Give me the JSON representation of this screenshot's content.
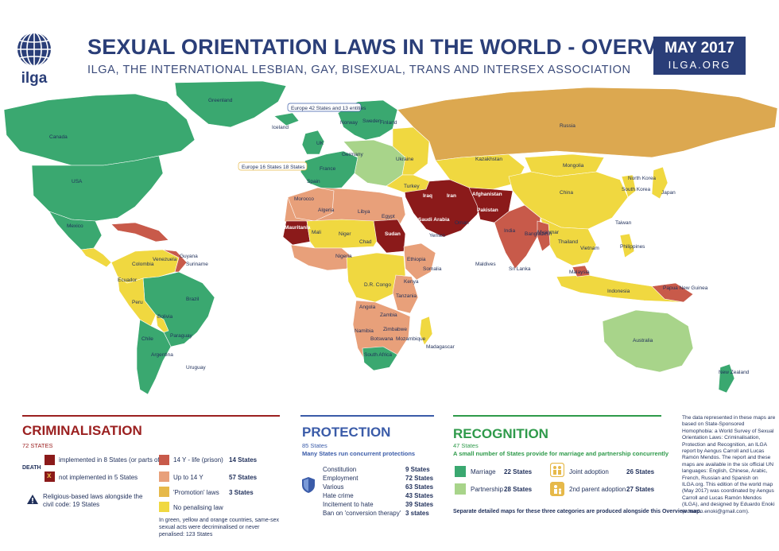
{
  "header": {
    "logo_text": "ilga",
    "title": "SEXUAL ORIENTATION LAWS IN THE WORLD - OVERVIEW",
    "subtitle": "ILGA, THE INTERNATIONAL LESBIAN, GAY, BISEXUAL, TRANS AND INTERSEX ASSOCIATION",
    "date": "MAY 2017",
    "site": "ILGA.ORG"
  },
  "colors": {
    "death": "#8b1a1a",
    "prison_14y_life": "#c85a4a",
    "up_to_14y": "#e8a07a",
    "promotion": "#e6b94a",
    "no_penalising": "#f0d840",
    "marriage": "#3aa870",
    "partnership": "#a8d48a",
    "protection_blue": "#3a5ba8",
    "recognition_green": "#2e9a4a",
    "criminalisation_red": "#9b2020",
    "ocean": "#ffffff",
    "russia": "#dca850"
  },
  "map_labels": {
    "greenland": "Greenland",
    "canada": "Canada",
    "usa": "USA",
    "mexico": "Mexico",
    "iceland": "Iceland",
    "russia": "Russia",
    "kazakhstan": "Kazakhstan",
    "mongolia": "Mongolia",
    "china": "China",
    "india": "India",
    "brazil": "Brazil",
    "argentina": "Argentina",
    "peru": "Peru",
    "bolivia": "Bolivia",
    "chile": "Chile",
    "colombia": "Colombia",
    "venezuela": "Venezuela",
    "ecuador": "Ecuador",
    "paraguay": "Paraguay",
    "uruguay": "Uruguay",
    "guyana": "Guyana",
    "suriname": "Suriname",
    "australia": "Australia",
    "new_zealand": "New Zealand",
    "japan": "Japan",
    "south_korea": "South Korea",
    "north_korea": "North Korea",
    "algeria": "Algeria",
    "libya": "Libya",
    "egypt": "Egypt",
    "sudan": "Sudan",
    "chad": "Chad",
    "niger": "Niger",
    "mali": "Mali",
    "mauritania": "Mauritania",
    "morocco": "Morocco",
    "nigeria": "Nigeria",
    "ethiopia": "Ethiopia",
    "somalia": "Somalia",
    "kenya": "Kenya",
    "tanzania": "Tanzania",
    "angola": "Angola",
    "zambia": "Zambia",
    "namibia": "Namibia",
    "botswana": "Botswana",
    "zimbabwe": "Zimbabwe",
    "mozambique": "Mozambique",
    "madagascar": "Madagascar",
    "south_africa": "South Africa",
    "dr_congo": "D.R. Congo",
    "iran": "Iran",
    "iraq": "Iraq",
    "saudi_arabia": "Saudi Arabia",
    "afghanistan": "Afghanistan",
    "pakistan": "Pakistan",
    "turkey": "Turkey",
    "ukraine": "Ukraine",
    "finland": "Finland",
    "sweden": "Sweden",
    "norway": "Norway",
    "spain": "Spain",
    "france": "France",
    "germany": "Germany",
    "uk": "UK",
    "indonesia": "Indonesia",
    "philippines": "Philippines",
    "thailand": "Thailand",
    "vietnam": "Vietnam",
    "myanmar": "Myanmar",
    "bangladesh": "Bangladesh",
    "papua_new_guinea": "Papua New Guinea",
    "malaysia": "Malaysia",
    "taiwan": "Taiwan",
    "sri_lanka": "Sri Lanka",
    "maldives": "Maldives",
    "yemen": "Yemen",
    "oman": "Oman",
    "europe_box1": "Europe 42 States and 13 entities",
    "europe_box2": "Europe 16 States 18 States"
  },
  "criminalisation": {
    "title": "CRIMINALISATION",
    "count": "72 STATES",
    "death_label": "DEATH",
    "death_implemented": "implemented in 8 States (or parts of)",
    "death_not_implemented": "not implemented in 5 States",
    "religious": "Religious-based laws alongside the civil code: 19 States",
    "legend": [
      {
        "label": "14 Y - life (prison)",
        "value": "14 States"
      },
      {
        "label": "Up to 14 Y",
        "value": "57 States"
      },
      {
        "label": "'Promotion' laws",
        "value": "3 States"
      },
      {
        "label": "No penalising law",
        "value": ""
      }
    ],
    "footnote": "In green, yellow and orange countries, same-sex sexual acts were decriminalised or never penalised: 123 States"
  },
  "protection": {
    "title": "PROTECTION",
    "count": "85 States",
    "sub": "Many States run concurrent protections",
    "items": [
      {
        "label": "Constitution",
        "value": "9 States"
      },
      {
        "label": "Employment",
        "value": "72 States"
      },
      {
        "label": "Various",
        "value": "63 States"
      },
      {
        "label": "Hate crime",
        "value": "43 States"
      },
      {
        "label": "Incitement to hate",
        "value": "39 States"
      },
      {
        "label": "Ban on 'conversion therapy'",
        "value": "3 states"
      }
    ]
  },
  "recognition": {
    "title": "RECOGNITION",
    "count": "47 States",
    "sub": "A small number of States provide for marriage and partnership concurrently",
    "marriage": {
      "label": "Marriage",
      "value": "22 States"
    },
    "partnership": {
      "label": "Partnership",
      "value": "28 States"
    },
    "joint": {
      "label": "Joint adoption",
      "value": "26 States"
    },
    "second": {
      "label": "2nd parent adoption",
      "value": "27 States"
    },
    "note": "Separate detailed maps for these three categories are produced alongside this Overview map."
  },
  "sidenote": "The data represented in these maps are based on State-Sponsored Homophobia: a World Survey of Sexual Orientation Laws: Criminalisation, Protection and Recognition, an ILGA report by Aengus Carroll and Lucas Ramón Mendos. The report and these maps are available in the six official UN languages: English, Chinese, Arabic, French, Russian and Spanish on ILGA.org. This edition of the world map (May 2017) was coordinated by Aengus Carroll and Lucas Ramón Mendos (ILGA), and designed by Eduardo Enoki (eduardo.enoki@gmail.com)."
}
